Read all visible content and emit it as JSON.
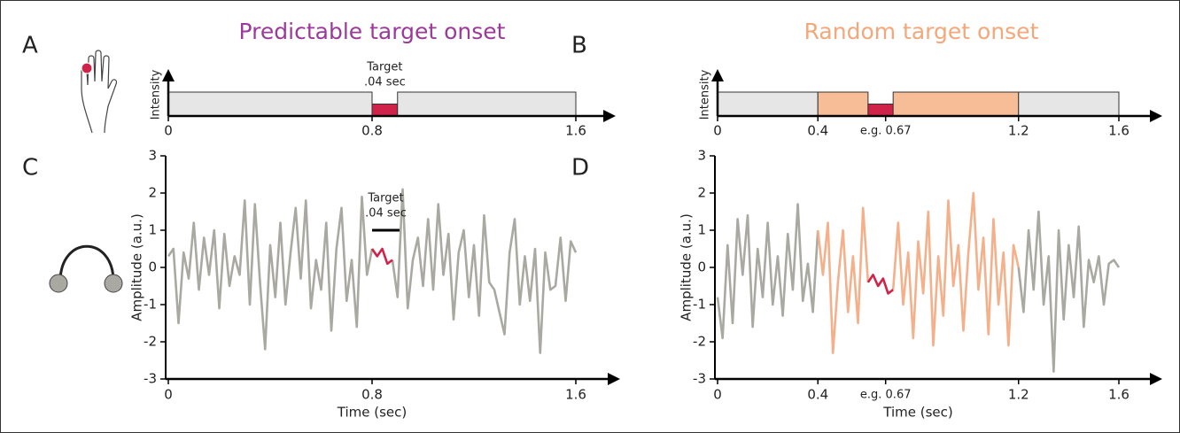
{
  "chart_data": [
    {
      "type": "timeline",
      "label": "A",
      "title": "Predictable target onset",
      "title_color": "#9b3a99",
      "y_label": "Intensity",
      "xlim": [
        0,
        1.6
      ],
      "xticks": [
        0,
        0.8,
        1.6
      ],
      "ylim": [
        0,
        1
      ],
      "segments": [
        {
          "x": [
            0,
            0.8
          ],
          "value": 1,
          "color": "#e6e6e6"
        },
        {
          "x": [
            0.8,
            0.9
          ],
          "value": 0.5,
          "color": "#d0234a"
        },
        {
          "x": [
            0.9,
            1.6
          ],
          "value": 1,
          "color": "#e6e6e6"
        }
      ],
      "annotation": {
        "text": [
          "Target",
          ".04 sec"
        ],
        "x": [
          0.8,
          0.9
        ]
      }
    },
    {
      "type": "timeline",
      "label": "B",
      "title": "Random target onset",
      "title_color": "#f4a77a",
      "y_label": "Intensity",
      "xlim": [
        0,
        1.6
      ],
      "xticks": [
        0,
        0.4,
        {
          "value": 0.67,
          "label": "e.g. 0.67"
        },
        1.2,
        1.6
      ],
      "ylim": [
        0,
        1
      ],
      "segments": [
        {
          "x": [
            0,
            0.4
          ],
          "value": 1,
          "color": "#e6e6e6"
        },
        {
          "x": [
            0.4,
            0.6
          ],
          "value": 1,
          "color": "#f7bd96"
        },
        {
          "x": [
            0.6,
            0.7
          ],
          "value": 0.5,
          "color": "#d0234a"
        },
        {
          "x": [
            0.7,
            1.2
          ],
          "value": 1,
          "color": "#f7bd96"
        },
        {
          "x": [
            1.2,
            1.6
          ],
          "value": 1,
          "color": "#e6e6e6"
        }
      ]
    },
    {
      "type": "line",
      "label": "C",
      "x_label": "Time (sec)",
      "y_label": "Amplitude (a.u.)",
      "xlim": [
        0,
        1.6
      ],
      "xticks": [
        0,
        0.8,
        1.6
      ],
      "ylim": [
        -3,
        3
      ],
      "yticks": [
        -3,
        -2,
        -1,
        0,
        1,
        2,
        3
      ],
      "x": [
        0,
        0.02,
        0.04,
        0.06,
        0.08,
        0.1,
        0.12,
        0.14,
        0.16,
        0.18,
        0.2,
        0.22,
        0.24,
        0.26,
        0.28,
        0.3,
        0.32,
        0.34,
        0.36,
        0.38,
        0.4,
        0.42,
        0.44,
        0.46,
        0.48,
        0.5,
        0.52,
        0.54,
        0.56,
        0.58,
        0.6,
        0.62,
        0.64,
        0.66,
        0.68,
        0.7,
        0.72,
        0.74,
        0.76,
        0.78,
        0.8,
        0.82,
        0.84,
        0.86,
        0.88,
        0.9,
        0.92,
        0.94,
        0.96,
        0.98,
        1,
        1.02,
        1.04,
        1.06,
        1.08,
        1.1,
        1.12,
        1.14,
        1.16,
        1.18,
        1.2,
        1.22,
        1.24,
        1.26,
        1.28,
        1.3,
        1.32,
        1.34,
        1.36,
        1.38,
        1.4,
        1.42,
        1.44,
        1.46,
        1.48,
        1.5,
        1.52,
        1.54,
        1.56,
        1.58,
        1.6
      ],
      "series": [
        {
          "color": "#a9a9a1",
          "values": [
            0.3,
            0.5,
            -1.5,
            0.4,
            -0.3,
            1.2,
            -0.6,
            0.8,
            -0.2,
            1.0,
            -1.1,
            0.9,
            -0.5,
            0.3,
            -0.2,
            1.8,
            -1.0,
            1.7,
            -0.4,
            -2.2,
            0.6,
            -0.8,
            1.2,
            -1.0,
            0.4,
            1.6,
            -0.3,
            1.8,
            -1.1,
            0.2,
            -0.6,
            1.2,
            -1.7,
            0.5,
            1.6,
            -0.9,
            0.2,
            -1.6,
            1.9,
            -0.2,
            0.5,
            null,
            null,
            null,
            0.2,
            -0.8,
            2.1,
            -1.1,
            0.2,
            0.8,
            -0.5,
            1.3,
            -0.6,
            1.7,
            -0.2,
            0.9,
            -1.4,
            0.4,
            1.0,
            -0.8,
            0.6,
            -1.3,
            1.4,
            -0.4,
            -0.6,
            -1.2,
            -1.8,
            0.4,
            1.3,
            -1.0,
            0.3,
            -0.9,
            0.5,
            -2.3,
            0.4,
            -0.6,
            -0.5,
            0.8,
            -0.9,
            0.7,
            0.4
          ]
        },
        {
          "color": "#d0234a",
          "values": [
            null,
            null,
            null,
            null,
            null,
            null,
            null,
            null,
            null,
            null,
            null,
            null,
            null,
            null,
            null,
            null,
            null,
            null,
            null,
            null,
            null,
            null,
            null,
            null,
            null,
            null,
            null,
            null,
            null,
            null,
            null,
            null,
            null,
            null,
            null,
            null,
            null,
            null,
            null,
            null,
            0.5,
            0.3,
            0.5,
            0.1,
            0.2,
            null,
            null,
            null,
            null,
            null,
            null,
            null,
            null,
            null,
            null,
            null,
            null,
            null,
            null,
            null,
            null,
            null,
            null,
            null,
            null,
            null,
            null,
            null,
            null,
            null,
            null,
            null,
            null,
            null,
            null,
            null,
            null,
            null,
            null,
            null,
            null
          ]
        }
      ],
      "annotation": {
        "text": [
          "Target",
          ".04 sec"
        ],
        "x": [
          0.8,
          0.88
        ],
        "y": 1.0
      }
    },
    {
      "type": "line",
      "label": "D",
      "x_label": "Time (sec)",
      "y_label": "Amplitude (a.u.)",
      "xlim": [
        0,
        1.6
      ],
      "xticks": [
        0,
        0.4,
        {
          "value": 0.67,
          "label": "e.g. 0.67"
        },
        1.2,
        1.6
      ],
      "ylim": [
        -3,
        3
      ],
      "yticks": [
        -3,
        -2,
        -1,
        0,
        1,
        2,
        3
      ],
      "x": [
        0,
        0.02,
        0.04,
        0.06,
        0.08,
        0.1,
        0.12,
        0.14,
        0.16,
        0.18,
        0.2,
        0.22,
        0.24,
        0.26,
        0.28,
        0.3,
        0.32,
        0.34,
        0.36,
        0.38,
        0.4,
        0.42,
        0.44,
        0.46,
        0.48,
        0.5,
        0.52,
        0.54,
        0.56,
        0.58,
        0.6,
        0.62,
        0.64,
        0.66,
        0.68,
        0.7,
        0.72,
        0.74,
        0.76,
        0.78,
        0.8,
        0.82,
        0.84,
        0.86,
        0.88,
        0.9,
        0.92,
        0.94,
        0.96,
        0.98,
        1,
        1.02,
        1.04,
        1.06,
        1.08,
        1.1,
        1.12,
        1.14,
        1.16,
        1.18,
        1.2,
        1.22,
        1.24,
        1.26,
        1.28,
        1.3,
        1.32,
        1.34,
        1.36,
        1.38,
        1.4,
        1.42,
        1.44,
        1.46,
        1.48,
        1.5,
        1.52,
        1.54,
        1.56,
        1.58,
        1.6
      ],
      "series": [
        {
          "color": "#a9a9a1",
          "values": [
            -0.8,
            -1.9,
            0.6,
            -1.5,
            1.3,
            -0.2,
            1.4,
            -1.6,
            0.5,
            -0.8,
            1.2,
            -1.0,
            0.3,
            -1.3,
            0.9,
            -0.6,
            1.7,
            -0.9,
            0.1,
            -1.2,
            1.0,
            null,
            null,
            null,
            null,
            null,
            null,
            null,
            null,
            null,
            null,
            null,
            null,
            null,
            null,
            null,
            null,
            null,
            null,
            null,
            null,
            null,
            null,
            null,
            null,
            null,
            null,
            null,
            null,
            null,
            null,
            null,
            null,
            null,
            null,
            null,
            null,
            null,
            null,
            null,
            0.0,
            -1.2,
            1.0,
            -0.6,
            1.5,
            -1.0,
            0.3,
            -2.8,
            1.0,
            -1.4,
            0.6,
            -0.8,
            1.1,
            -1.6,
            0.2,
            -0.4,
            0.3,
            -1.0,
            0.1,
            0.2,
            0.0
          ]
        },
        {
          "color": "#f4b08a",
          "values": [
            null,
            null,
            null,
            null,
            null,
            null,
            null,
            null,
            null,
            null,
            null,
            null,
            null,
            null,
            null,
            null,
            null,
            null,
            null,
            null,
            1.0,
            -0.2,
            1.2,
            -2.3,
            -0.4,
            1.0,
            -1.2,
            0.3,
            -1.5,
            1.6,
            -0.4,
            null,
            null,
            null,
            null,
            -0.6,
            1.2,
            -1.0,
            0.4,
            -1.9,
            0.7,
            -0.7,
            1.5,
            -2.1,
            0.3,
            -1.3,
            1.8,
            -0.5,
            0.6,
            -1.7,
            0.4,
            2.0,
            -0.6,
            0.8,
            -1.8,
            1.3,
            -1.0,
            0.4,
            -2.1,
            0.6,
            0.0,
            null,
            null,
            null,
            null,
            null,
            null,
            null,
            null,
            null,
            null,
            null,
            null,
            null,
            null,
            null,
            null,
            null,
            null,
            null,
            null
          ]
        },
        {
          "color": "#d0234a",
          "values": [
            null,
            null,
            null,
            null,
            null,
            null,
            null,
            null,
            null,
            null,
            null,
            null,
            null,
            null,
            null,
            null,
            null,
            null,
            null,
            null,
            null,
            null,
            null,
            null,
            null,
            null,
            null,
            null,
            null,
            null,
            -0.4,
            -0.2,
            -0.5,
            -0.3,
            -0.7,
            -0.6,
            null,
            null,
            null,
            null,
            null,
            null,
            null,
            null,
            null,
            null,
            null,
            null,
            null,
            null,
            null,
            null,
            null,
            null,
            null,
            null,
            null,
            null,
            null,
            null,
            null,
            null,
            null,
            null,
            null,
            null,
            null,
            null,
            null,
            null,
            null,
            null,
            null,
            null,
            null,
            null,
            null,
            null,
            null,
            null,
            null
          ]
        }
      ]
    }
  ]
}
